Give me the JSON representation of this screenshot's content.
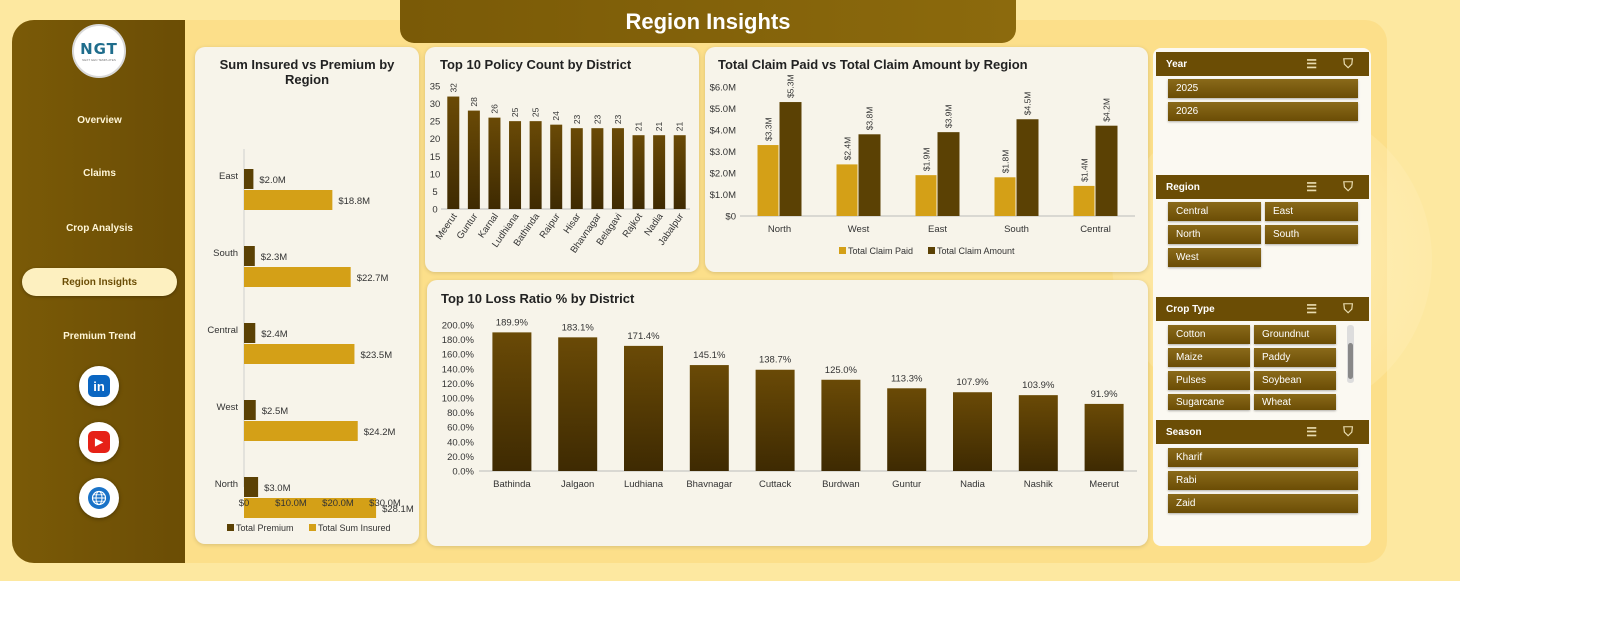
{
  "page": {
    "title": "Region Insights"
  },
  "logo": {
    "text": "NGT",
    "subtitle": "NEXT GEN TEMPLATES"
  },
  "sidebar": {
    "items": [
      {
        "label": "Overview"
      },
      {
        "label": "Claims"
      },
      {
        "label": "Crop Analysis"
      },
      {
        "label": "Region Insights"
      },
      {
        "label": "Premium Trend"
      }
    ],
    "socials": [
      {
        "icon": "linkedin-icon",
        "glyph": "in",
        "color": "#0a66c2"
      },
      {
        "icon": "youtube-icon",
        "glyph": "▶",
        "color": "#e62117"
      },
      {
        "icon": "globe-icon",
        "glyph": "◍",
        "color": "#1a73c8"
      }
    ]
  },
  "colors": {
    "dark": "#5b4104",
    "gold": "#d4a017",
    "bg": "#fde8a0"
  },
  "chart_data": [
    {
      "id": "sum-insured-vs-premium",
      "type": "bar",
      "orientation": "horizontal",
      "title": "Sum Insured vs Premium by Region",
      "categories": [
        "East",
        "South",
        "Central",
        "West",
        "North"
      ],
      "series": [
        {
          "name": "Total Premium",
          "values": [
            2.0,
            2.3,
            2.4,
            2.5,
            3.0
          ],
          "labels": [
            "$2.0M",
            "$2.3M",
            "$2.4M",
            "$2.5M",
            "$3.0M"
          ]
        },
        {
          "name": "Total Sum Insured",
          "values": [
            18.8,
            22.7,
            23.5,
            24.2,
            28.1
          ],
          "labels": [
            "$18.8M",
            "$22.7M",
            "$23.5M",
            "$24.2M",
            "$28.1M"
          ]
        }
      ],
      "xlim": [
        0,
        30
      ],
      "ticks": [
        "$0",
        "$10.0M",
        "$20.0M",
        "$30.0M"
      ],
      "legend": "bottom"
    },
    {
      "id": "policy-count-by-district",
      "type": "bar",
      "title": "Top 10 Policy Count by District",
      "categories": [
        "Meerut",
        "Guntur",
        "Karnal",
        "Ludhiana",
        "Bathinda",
        "Raipur",
        "Hisar",
        "Bhavnagar",
        "Belagavi",
        "Rajkot",
        "Nadia",
        "Jabalpur"
      ],
      "values": [
        32,
        28,
        26,
        25,
        25,
        24,
        23,
        23,
        23,
        21,
        21,
        21
      ],
      "ylim": [
        0,
        35
      ],
      "yticks": [
        "0",
        "5",
        "10",
        "15",
        "20",
        "25",
        "30",
        "35"
      ]
    },
    {
      "id": "claim-paid-vs-amount",
      "type": "bar",
      "title": "Total Claim Paid vs Total Claim Amount by Region",
      "categories": [
        "North",
        "West",
        "East",
        "South",
        "Central"
      ],
      "series": [
        {
          "name": "Total Claim Paid",
          "values": [
            3.3,
            2.4,
            1.9,
            1.8,
            1.4
          ],
          "labels": [
            "$3.3M",
            "$2.4M",
            "$1.9M",
            "$1.8M",
            "$1.4M"
          ]
        },
        {
          "name": "Total Claim Amount",
          "values": [
            5.3,
            3.8,
            3.9,
            4.5,
            4.2
          ],
          "labels": [
            "$5.3M",
            "$3.8M",
            "$3.9M",
            "$4.5M",
            "$4.2M"
          ]
        }
      ],
      "ylim": [
        0,
        6
      ],
      "yticks": [
        "$0",
        "$1.0M",
        "$2.0M",
        "$3.0M",
        "$4.0M",
        "$5.0M",
        "$6.0M"
      ],
      "legend": "bottom"
    },
    {
      "id": "loss-ratio-by-district",
      "type": "bar",
      "title": "Top 10 Loss Ratio % by District",
      "categories": [
        "Bathinda",
        "Jalgaon",
        "Ludhiana",
        "Bhavnagar",
        "Cuttack",
        "Burdwan",
        "Guntur",
        "Nadia",
        "Nashik",
        "Meerut"
      ],
      "values": [
        189.9,
        183.1,
        171.4,
        145.1,
        138.7,
        125.0,
        113.3,
        107.9,
        103.9,
        91.9
      ],
      "labels": [
        "189.9%",
        "183.1%",
        "171.4%",
        "145.1%",
        "138.7%",
        "125.0%",
        "113.3%",
        "107.9%",
        "103.9%",
        "91.9%"
      ],
      "ylim": [
        0,
        200
      ],
      "yticks": [
        "0.0%",
        "20.0%",
        "40.0%",
        "60.0%",
        "80.0%",
        "100.0%",
        "120.0%",
        "140.0%",
        "160.0%",
        "180.0%",
        "200.0%"
      ]
    }
  ],
  "slicers": {
    "year": {
      "title": "Year",
      "items": [
        "2025",
        "2026"
      ]
    },
    "region": {
      "title": "Region",
      "items": [
        "Central",
        "East",
        "North",
        "South",
        "West"
      ]
    },
    "crop": {
      "title": "Crop Type",
      "items": [
        "Cotton",
        "Groundnut",
        "Maize",
        "Paddy",
        "Pulses",
        "Soybean",
        "Sugarcane",
        "Wheat"
      ]
    },
    "season": {
      "title": "Season",
      "items": [
        "Kharif",
        "Rabi",
        "Zaid"
      ]
    }
  }
}
